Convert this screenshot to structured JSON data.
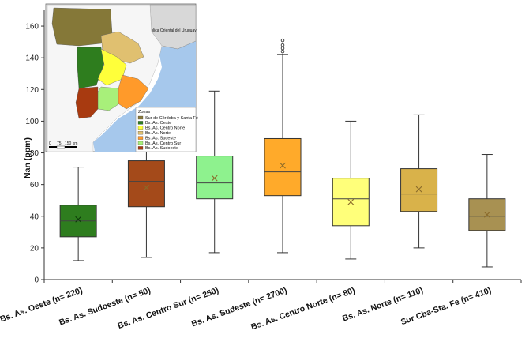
{
  "chart_data": {
    "type": "box",
    "ylabel": "Nan (ppm)",
    "ylim": [
      0,
      170
    ],
    "yticks": [
      0,
      20,
      40,
      60,
      80,
      100,
      120,
      140,
      160
    ],
    "categories": [
      "Bs. As. Oeste (n= 220)",
      "Bs. As. Sudoeste (n= 50)",
      "Bs. As. Centro Sur (n= 250)",
      "Bs. As. Sudeste (n= 2700)",
      "Bs. As. Centro Norte (n= 80)",
      "Bs. As. Norte (n= 110)",
      "Sur Cba-Sta. Fe (n= 410)"
    ],
    "colors": [
      "#2e7d1e",
      "#a44a1a",
      "#8ef28e",
      "#ffaa2a",
      "#ffff7a",
      "#d9b24a",
      "#a89152"
    ],
    "boxes": [
      {
        "min": 12,
        "q1": 27,
        "median": 37,
        "q3": 47,
        "max": 71,
        "mean": 38,
        "outliers": []
      },
      {
        "min": 14,
        "q1": 46,
        "median": 62,
        "q3": 75,
        "max": 81,
        "mean": 58,
        "outliers": []
      },
      {
        "min": 17,
        "q1": 51,
        "median": 61,
        "q3": 78,
        "max": 119,
        "mean": 64,
        "outliers": []
      },
      {
        "min": 17,
        "q1": 53,
        "median": 68,
        "q3": 89,
        "max": 142,
        "mean": 72,
        "outliers": [
          144,
          146,
          148,
          151
        ]
      },
      {
        "min": 13,
        "q1": 34,
        "median": 51,
        "q3": 64,
        "max": 100,
        "mean": 49,
        "outliers": []
      },
      {
        "min": 20,
        "q1": 43,
        "median": 54,
        "q3": 70,
        "max": 104,
        "mean": 57,
        "outliers": []
      },
      {
        "min": 8,
        "q1": 31,
        "median": 40,
        "q3": 51,
        "max": 79,
        "mean": 41,
        "outliers": []
      }
    ],
    "inset_map": {
      "legend_title": "Zonas",
      "legend": [
        {
          "label": "Sur de Córdoba y Santa Fé",
          "color": "#8a7a3a"
        },
        {
          "label": "Bs. As. Oeste",
          "color": "#2e7d1e"
        },
        {
          "label": "Bs. As. Centro Norte",
          "color": "#ffff3a"
        },
        {
          "label": "Bs. As. Norte",
          "color": "#e0c070"
        },
        {
          "label": "Bs. As. Sudeste",
          "color": "#ff9a2a"
        },
        {
          "label": "Bs. As. Centro Sur",
          "color": "#a8f07a"
        },
        {
          "label": "Bs. As. Sudoeste",
          "color": "#a83a10"
        }
      ],
      "scale_labels": [
        "0",
        "75",
        "150 km"
      ],
      "place_label": "República Oriental del Uruguay"
    }
  }
}
